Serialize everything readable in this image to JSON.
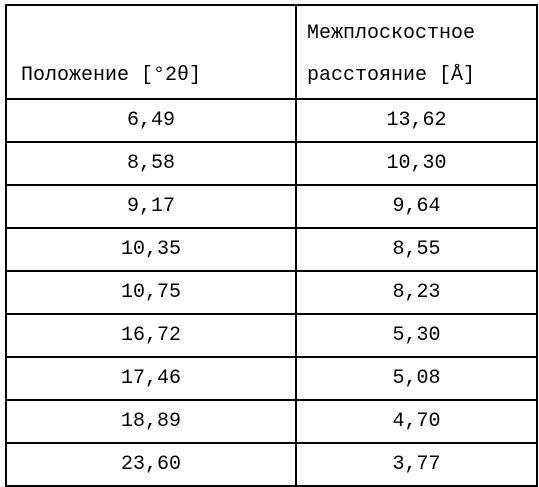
{
  "table": {
    "headers": {
      "position": "Положение [°2θ]",
      "spacing_line1": "Межплоскостное",
      "spacing_line2": "расстояние [Å]"
    },
    "rows": [
      {
        "position": "6,49",
        "spacing": "13,62"
      },
      {
        "position": "8,58",
        "spacing": "10,30"
      },
      {
        "position": "9,17",
        "spacing": "9,64"
      },
      {
        "position": "10,35",
        "spacing": "8,55"
      },
      {
        "position": "10,75",
        "spacing": "8,23"
      },
      {
        "position": "16,72",
        "spacing": "5,30"
      },
      {
        "position": "17,46",
        "spacing": "5,08"
      },
      {
        "position": "18,89",
        "spacing": "4,70"
      },
      {
        "position": "23,60",
        "spacing": "3,77"
      }
    ]
  }
}
